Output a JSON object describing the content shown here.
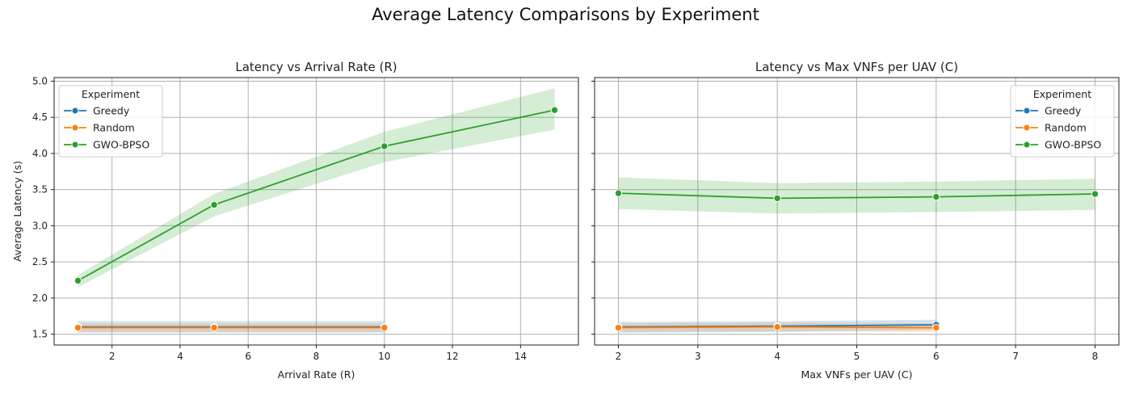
{
  "figure": {
    "suptitle": "Average Latency Comparisons by Experiment"
  },
  "colors": {
    "Greedy": "#1f77b4",
    "Random": "#ff7f0e",
    "GWO-BPSO": "#2ca02c"
  },
  "chart_data": [
    {
      "type": "line",
      "title": "Latency vs Arrival Rate (R)",
      "xlabel": "Arrival Rate (R)",
      "ylabel": "Average Latency (s)",
      "xlim": [
        0.3,
        15.7
      ],
      "ylim": [
        1.35,
        5.05
      ],
      "xticks": [
        2,
        4,
        6,
        8,
        10,
        12,
        14
      ],
      "yticks": [
        1.5,
        2.0,
        2.5,
        3.0,
        3.5,
        4.0,
        4.5,
        5.0
      ],
      "grid": true,
      "legend": {
        "title": "Experiment",
        "location": "upper left"
      },
      "series": [
        {
          "name": "Greedy",
          "x": [
            1,
            5,
            10
          ],
          "y": [
            1.6,
            1.6,
            1.6
          ],
          "ci_low": [
            1.52,
            1.52,
            1.52
          ],
          "ci_high": [
            1.68,
            1.68,
            1.68
          ]
        },
        {
          "name": "Random",
          "x": [
            1,
            5,
            10
          ],
          "y": [
            1.59,
            1.59,
            1.59
          ],
          "ci_low": [
            1.53,
            1.53,
            1.53
          ],
          "ci_high": [
            1.65,
            1.65,
            1.65
          ]
        },
        {
          "name": "GWO-BPSO",
          "x": [
            1,
            5,
            10,
            15
          ],
          "y": [
            2.24,
            3.29,
            4.1,
            4.6
          ],
          "ci_low": [
            2.15,
            3.13,
            3.88,
            4.33
          ],
          "ci_high": [
            2.32,
            3.44,
            4.3,
            4.9
          ]
        }
      ]
    },
    {
      "type": "line",
      "title": "Latency vs Max VNFs per UAV (C)",
      "xlabel": "Max VNFs per UAV (C)",
      "ylabel": "",
      "xlim": [
        1.7,
        8.3
      ],
      "ylim": [
        1.35,
        5.05
      ],
      "xticks": [
        2,
        3,
        4,
        5,
        6,
        7,
        8
      ],
      "yticks": [
        1.5,
        2.0,
        2.5,
        3.0,
        3.5,
        4.0,
        4.5,
        5.0
      ],
      "grid": true,
      "legend": {
        "title": "Experiment",
        "location": "upper right"
      },
      "series": [
        {
          "name": "Greedy",
          "x": [
            2,
            4,
            6
          ],
          "y": [
            1.6,
            1.61,
            1.63
          ],
          "ci_low": [
            1.52,
            1.53,
            1.56
          ],
          "ci_high": [
            1.67,
            1.68,
            1.7
          ]
        },
        {
          "name": "Random",
          "x": [
            2,
            4,
            6
          ],
          "y": [
            1.59,
            1.6,
            1.59
          ],
          "ci_low": [
            1.53,
            1.54,
            1.53
          ],
          "ci_high": [
            1.65,
            1.66,
            1.65
          ]
        },
        {
          "name": "GWO-BPSO",
          "x": [
            2,
            4,
            6,
            8
          ],
          "y": [
            3.45,
            3.38,
            3.4,
            3.44
          ],
          "ci_low": [
            3.23,
            3.17,
            3.19,
            3.22
          ],
          "ci_high": [
            3.67,
            3.59,
            3.61,
            3.65
          ]
        }
      ]
    }
  ]
}
